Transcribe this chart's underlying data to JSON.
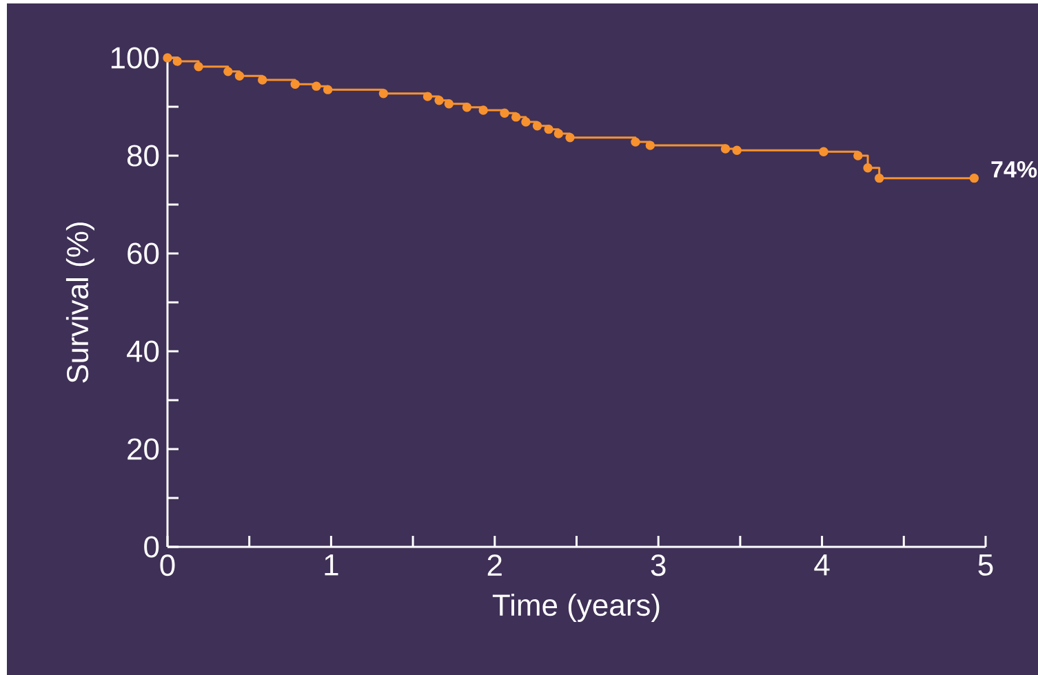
{
  "chart_data": {
    "type": "step",
    "xlabel": "Time (years)",
    "ylabel": "Survival (%)",
    "x": [
      0,
      0.06,
      0.19,
      0.37,
      0.44,
      0.58,
      0.78,
      0.91,
      0.98,
      1.32,
      1.59,
      1.66,
      1.72,
      1.83,
      1.93,
      2.06,
      2.13,
      2.19,
      2.26,
      2.33,
      2.39,
      2.46,
      2.86,
      2.95,
      3.41,
      3.48,
      4.01,
      4.22,
      4.28,
      4.35,
      4.93
    ],
    "values": [
      100,
      99.3,
      98.2,
      97.2,
      96.3,
      95.5,
      94.6,
      94.2,
      93.5,
      92.7,
      92.1,
      91.3,
      90.6,
      89.9,
      89.3,
      88.7,
      87.9,
      86.9,
      86.1,
      85.4,
      84.5,
      83.7,
      82.8,
      82.1,
      81.4,
      81.1,
      80.8,
      80.0,
      77.5,
      75.4,
      75.4
    ],
    "color": "#f7922f",
    "marker": "circle",
    "xlim": [
      0,
      5
    ],
    "ylim": [
      0,
      100
    ],
    "xticks": [
      0,
      {
        "value": 0.5,
        "label": null
      },
      1,
      {
        "value": 1.5,
        "label": null
      },
      2,
      {
        "value": 2.5,
        "label": null
      },
      3,
      {
        "value": 3.5,
        "label": null
      },
      4,
      {
        "value": 4.5,
        "label": null
      },
      5
    ],
    "yticks": [
      0,
      {
        "value": 10,
        "label": null
      },
      20,
      {
        "value": 30,
        "label": null
      },
      40,
      {
        "value": 50,
        "label": null
      },
      60,
      {
        "value": 70,
        "label": null
      },
      80,
      {
        "value": 90,
        "label": null
      },
      100
    ],
    "annotations": [
      "74%"
    ]
  }
}
